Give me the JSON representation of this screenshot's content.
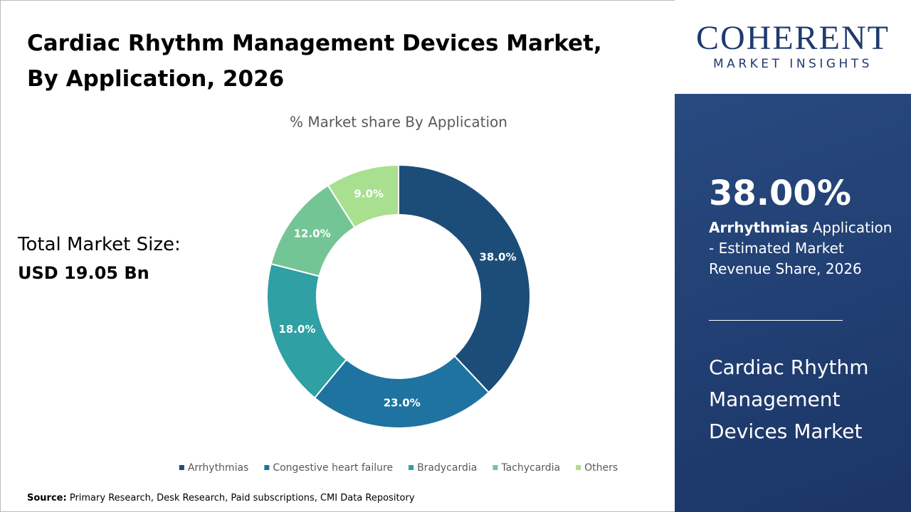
{
  "chart_data": {
    "type": "donut",
    "title": "Cardiac Rhythm Management Devices Market, By Application, 2026",
    "subtitle": "% Market share By Application",
    "categories": [
      "Arrhythmias",
      "Congestive heart failure",
      "Bradycardia",
      "Tachycardia",
      "Others"
    ],
    "values": [
      38,
      23,
      18,
      12,
      9
    ],
    "value_labels": [
      "38.0%",
      "23.0%",
      "18.0%",
      "12.0%",
      "9.0%"
    ],
    "colors": [
      "#1b4d78",
      "#1e73a0",
      "#2fa0a4",
      "#74c596",
      "#a8e08f"
    ],
    "legend": "bottom"
  },
  "market_size": {
    "label": "Total Market Size:",
    "value": "USD 19.05 Bn"
  },
  "logo": {
    "name": "COHERENT",
    "tagline": "MARKET INSIGHTS"
  },
  "highlight": {
    "share": "38.00%",
    "segment": "Arrhythmias",
    "text": "Application - Estimated Market Revenue Share, 2026",
    "market": "Cardiac Rhythm Management Devices Market"
  },
  "source": {
    "label": "Source:",
    "text": "Primary Research, Desk Research, Paid subscriptions, CMI Data Repository"
  }
}
